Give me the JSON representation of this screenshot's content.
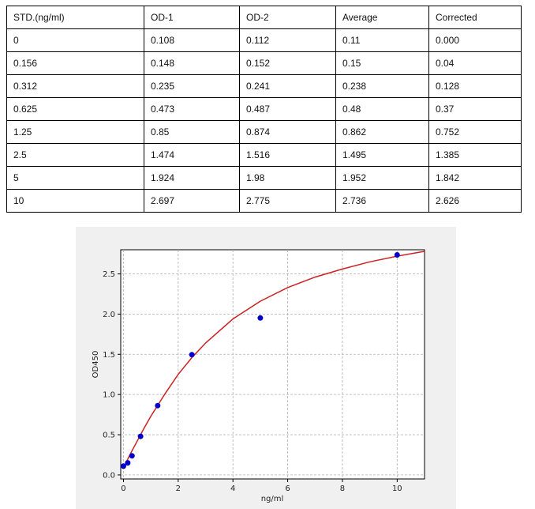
{
  "table": {
    "headers": [
      "STD.(ng/ml)",
      "OD-1",
      "OD-2",
      "Average",
      "Corrected"
    ],
    "rows": [
      [
        "0",
        "0.108",
        "0.112",
        "0.11",
        "0.000"
      ],
      [
        "0.156",
        "0.148",
        "0.152",
        "0.15",
        "0.04"
      ],
      [
        "0.312",
        "0.235",
        "0.241",
        "0.238",
        "0.128"
      ],
      [
        "0.625",
        "0.473",
        "0.487",
        "0.48",
        "0.37"
      ],
      [
        "1.25",
        "0.85",
        "0.874",
        "0.862",
        "0.752"
      ],
      [
        "2.5",
        "1.474",
        "1.516",
        "1.495",
        "1.385"
      ],
      [
        "5",
        "1.924",
        "1.98",
        "1.952",
        "1.842"
      ],
      [
        "10",
        "2.697",
        "2.775",
        "2.736",
        "2.626"
      ]
    ]
  },
  "chart_data": {
    "type": "scatter",
    "title": "",
    "xlabel": "ng/ml",
    "ylabel": "OD450",
    "xlim": [
      -0.1,
      11
    ],
    "ylim": [
      -0.05,
      2.8
    ],
    "xticks": [
      0,
      2,
      4,
      6,
      8,
      10
    ],
    "yticks": [
      0.0,
      0.5,
      1.0,
      1.5,
      2.0,
      2.5
    ],
    "xtick_labels": [
      "0",
      "2",
      "4",
      "6",
      "8",
      "10"
    ],
    "ytick_labels": [
      "0.0",
      "0.5",
      "1.0",
      "1.5",
      "2.0",
      "2.5"
    ],
    "grid": true,
    "series": [
      {
        "kind": "points",
        "color": "#0000cc",
        "x": [
          0,
          0.156,
          0.312,
          0.625,
          1.25,
          2.5,
          5,
          10
        ],
        "y": [
          0.11,
          0.15,
          0.238,
          0.48,
          0.862,
          1.495,
          1.952,
          2.736
        ]
      },
      {
        "kind": "fit-curve",
        "color": "#cc2222",
        "x": [
          0,
          0.25,
          0.5,
          0.75,
          1,
          1.5,
          2,
          2.5,
          3,
          4,
          5,
          6,
          7,
          8,
          9,
          10,
          11
        ],
        "y": [
          0.09,
          0.26,
          0.42,
          0.58,
          0.73,
          1.0,
          1.25,
          1.46,
          1.64,
          1.94,
          2.16,
          2.33,
          2.46,
          2.56,
          2.65,
          2.72,
          2.78
        ]
      }
    ]
  }
}
